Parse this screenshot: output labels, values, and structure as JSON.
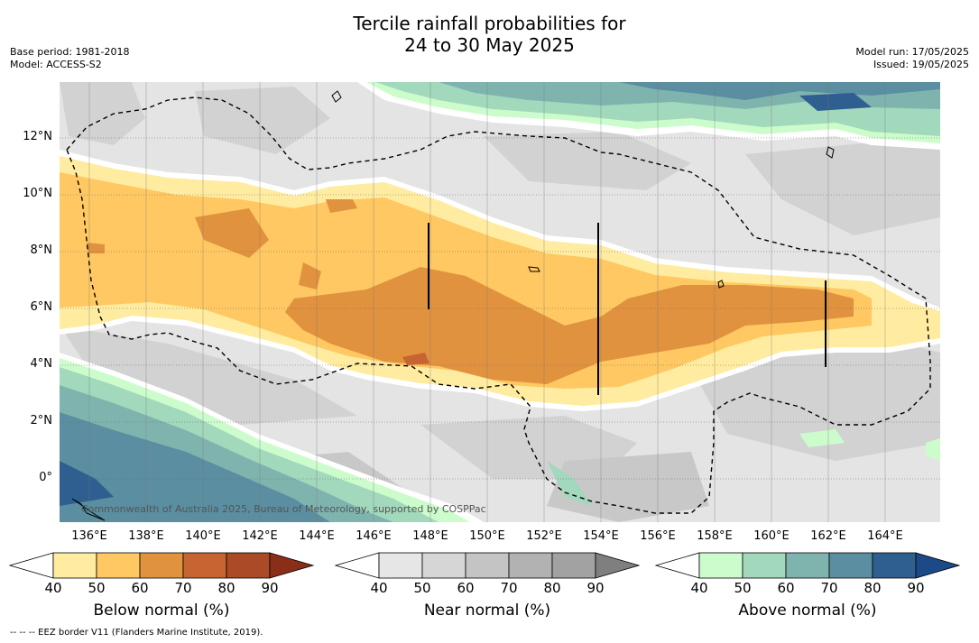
{
  "title": {
    "line1": "Tercile rainfall probabilities for",
    "line2": "24 to 30 May 2025"
  },
  "meta": {
    "base_period": "Base period: 1981-2018",
    "model": "Model: ACCESS-S2",
    "model_run": "Model run: 17/05/2025",
    "issued": "Issued: 19/05/2025"
  },
  "copyright": "Commonwealth of Australia 2025, Bureau of Meteorology, supported by COSPPac",
  "footer": "-- -- -- EEZ border V11 (Flanders Marine Institute, 2019).",
  "axes": {
    "lat_labels": [
      "12°N",
      "10°N",
      "8°N",
      "6°N",
      "4°N",
      "2°N",
      "0°"
    ],
    "lon_labels": [
      "136°E",
      "138°E",
      "140°E",
      "142°E",
      "144°E",
      "146°E",
      "148°E",
      "150°E",
      "152°E",
      "154°E",
      "156°E",
      "158°E",
      "160°E",
      "162°E",
      "164°E"
    ]
  },
  "colorbars": [
    {
      "name": "below",
      "label": "Below normal (%)",
      "ticks": [
        "40",
        "50",
        "60",
        "70",
        "80",
        "90"
      ],
      "colors": [
        "#ffffff",
        "#ffeca0",
        "#ffc862",
        "#e0923f",
        "#c86432",
        "#aa4a26",
        "#8a2e1a"
      ]
    },
    {
      "name": "near",
      "label": "Near normal (%)",
      "ticks": [
        "40",
        "50",
        "60",
        "70",
        "80",
        "90"
      ],
      "colors": [
        "#ffffff",
        "#e6e6e6",
        "#d6d6d6",
        "#c4c4c4",
        "#b2b2b2",
        "#a2a2a2",
        "#7f7f7f"
      ]
    },
    {
      "name": "above",
      "label": "Above normal (%)",
      "ticks": [
        "40",
        "50",
        "60",
        "70",
        "80",
        "90"
      ],
      "colors": [
        "#ffffff",
        "#ccfccc",
        "#a2d8bc",
        "#7fb4ae",
        "#5a8ea0",
        "#2f5f90",
        "#1c4a86"
      ]
    }
  ]
}
